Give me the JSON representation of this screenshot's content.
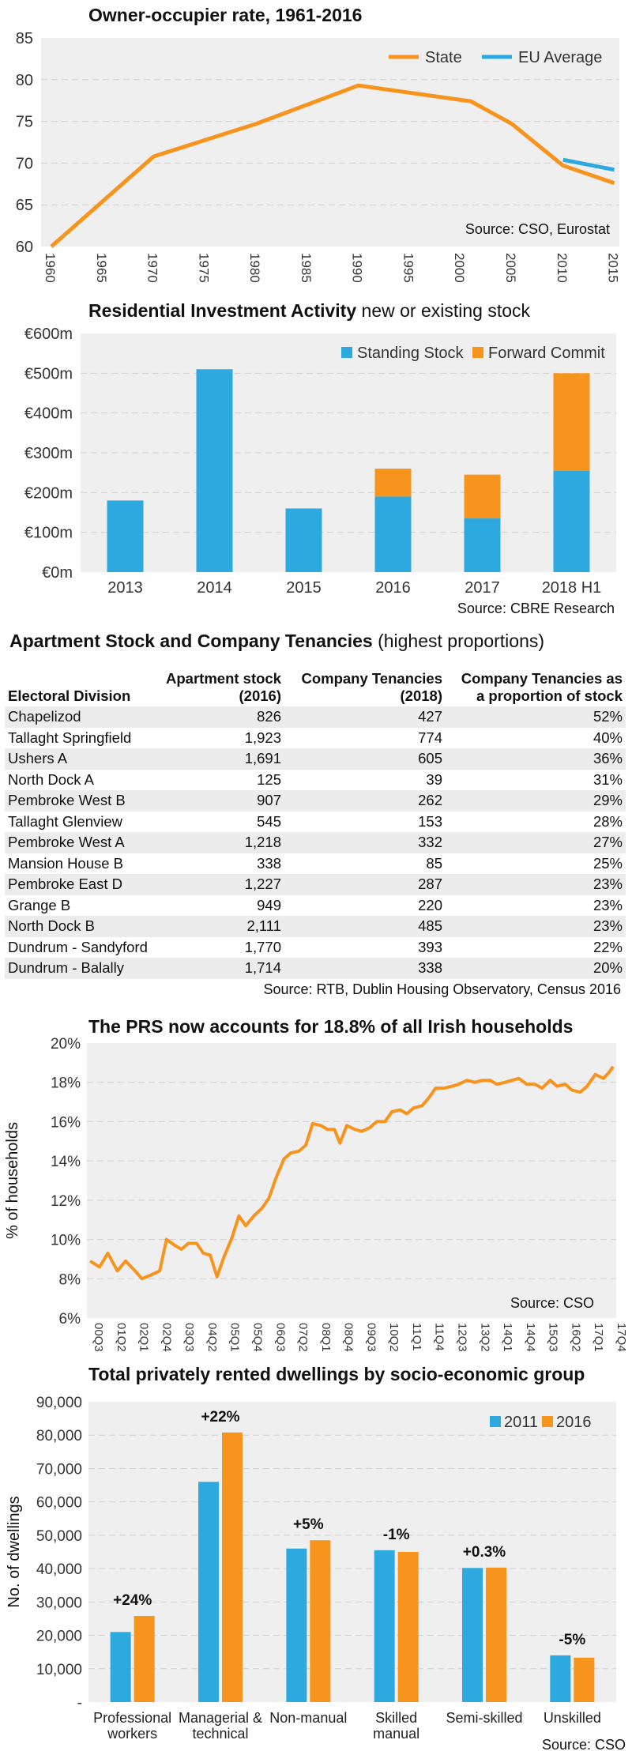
{
  "colors": {
    "orange": "#f7941d",
    "blue": "#2ea9df",
    "panel_bg": "#efefef",
    "grid": "#d0d0d0"
  },
  "chart_data": [
    {
      "type": "line",
      "title": "Owner-occupier rate, 1961-2016",
      "xlabel": "",
      "ylabel": "",
      "ylim": [
        60,
        85
      ],
      "yticks": [
        "60",
        "65",
        "70",
        "75",
        "80",
        "85"
      ],
      "xticks": [
        "1960",
        "1965",
        "1970",
        "1975",
        "1980",
        "1985",
        "1990",
        "1995",
        "2000",
        "2005",
        "2010",
        "2015"
      ],
      "series": [
        {
          "name": "State",
          "color": "#f7941d",
          "points": [
            [
              1961,
              60.0
            ],
            [
              1971,
              70.8
            ],
            [
              1981,
              74.7
            ],
            [
              1991,
              79.3
            ],
            [
              2002,
              77.4
            ],
            [
              2006,
              74.7
            ],
            [
              2011,
              69.7
            ],
            [
              2016,
              67.6
            ]
          ]
        },
        {
          "name": "EU Average",
          "color": "#2ea9df",
          "points": [
            [
              2011,
              70.4
            ],
            [
              2016,
              69.2
            ]
          ]
        }
      ],
      "legend": "top-right",
      "source": "Source: CSO, Eurostat"
    },
    {
      "type": "bar",
      "title": "Residential Investment Activity",
      "subtitle": "new or existing stock",
      "categories": [
        "2013",
        "2014",
        "2015",
        "2016",
        "2017",
        "2018 H1"
      ],
      "series": [
        {
          "name": "Standing Stock",
          "color": "#2ea9df",
          "values": [
            180,
            510,
            160,
            190,
            135,
            255
          ]
        },
        {
          "name": "Forward Commit",
          "color": "#f7941d",
          "values": [
            0,
            0,
            0,
            70,
            110,
            245
          ]
        }
      ],
      "stacked": true,
      "ylim": [
        0,
        600
      ],
      "yticks": [
        "€0m",
        "€100m",
        "€200m",
        "€300m",
        "€400m",
        "€500m",
        "€600m"
      ],
      "legend": "top-right",
      "source": "Source: CBRE Research"
    },
    {
      "type": "table",
      "title": "Apartment Stock and Company Tenancies",
      "subtitle": "(highest proportions)",
      "columns": [
        "Electoral Division",
        "Apartment stock\n(2016)",
        "Company Tenancies\n(2018)",
        "Company Tenancies as\na proportion of stock"
      ],
      "rows": [
        [
          "Chapelizod",
          "826",
          "427",
          "52%"
        ],
        [
          "Tallaght Springfield",
          "1,923",
          "774",
          "40%"
        ],
        [
          "Ushers A",
          "1,691",
          "605",
          "36%"
        ],
        [
          "North Dock A",
          "125",
          "39",
          "31%"
        ],
        [
          "Pembroke West B",
          "907",
          "262",
          "29%"
        ],
        [
          "Tallaght Glenview",
          "545",
          "153",
          "28%"
        ],
        [
          "Pembroke West A",
          "1,218",
          "332",
          "27%"
        ],
        [
          "Mansion House B",
          "338",
          "85",
          "25%"
        ],
        [
          "Pembroke East D",
          "1,227",
          "287",
          "23%"
        ],
        [
          "Grange B",
          "949",
          "220",
          "23%"
        ],
        [
          "North Dock B",
          "2,111",
          "485",
          "23%"
        ],
        [
          "Dundrum - Sandyford",
          "1,770",
          "393",
          "22%"
        ],
        [
          "Dundrum - Balally",
          "1,714",
          "338",
          "20%"
        ]
      ],
      "source": "Source: RTB, Dublin Housing Observatory, Census 2016"
    },
    {
      "type": "line",
      "title": "The PRS now accounts for 18.8% of all Irish households",
      "ylabel": "% of households",
      "ylim": [
        6,
        20
      ],
      "yticks": [
        "6%",
        "8%",
        "10%",
        "12%",
        "14%",
        "16%",
        "18%",
        "20%"
      ],
      "xticks": [
        "00Q3",
        "01Q2",
        "02Q1",
        "02Q4",
        "03Q3",
        "04Q2",
        "05Q1",
        "05Q4",
        "06Q3",
        "07Q2",
        "08Q1",
        "08Q4",
        "09Q3",
        "10Q2",
        "11Q1",
        "11Q4",
        "12Q3",
        "13Q2",
        "14Q1",
        "14Q4",
        "15Q3",
        "16Q2",
        "17Q1",
        "17Q4"
      ],
      "series": [
        {
          "name": "",
          "color": "#f7941d",
          "points": [
            [
              0,
              8.9
            ],
            [
              0.7,
              8.6
            ],
            [
              1.3,
              9.3
            ],
            [
              2,
              8.4
            ],
            [
              2.6,
              8.9
            ],
            [
              3.3,
              8.4
            ],
            [
              3.8,
              8.0
            ],
            [
              4.5,
              8.2
            ],
            [
              5.1,
              8.4
            ],
            [
              5.6,
              10.0
            ],
            [
              6.2,
              9.7
            ],
            [
              6.7,
              9.5
            ],
            [
              7.2,
              9.8
            ],
            [
              7.8,
              9.8
            ],
            [
              8.3,
              9.3
            ],
            [
              8.8,
              9.2
            ],
            [
              9.3,
              8.1
            ],
            [
              9.8,
              9.1
            ],
            [
              10.4,
              10.1
            ],
            [
              10.9,
              11.2
            ],
            [
              11.4,
              10.7
            ],
            [
              12,
              11.2
            ],
            [
              12.6,
              11.6
            ],
            [
              13.1,
              12.1
            ],
            [
              13.6,
              13.1
            ],
            [
              14.2,
              14.1
            ],
            [
              14.7,
              14.4
            ],
            [
              15.3,
              14.5
            ],
            [
              15.8,
              14.8
            ],
            [
              16.3,
              15.9
            ],
            [
              16.9,
              15.8
            ],
            [
              17.4,
              15.6
            ],
            [
              17.9,
              15.6
            ],
            [
              18.3,
              14.9
            ],
            [
              18.8,
              15.8
            ],
            [
              19.4,
              15.6
            ],
            [
              19.9,
              15.5
            ],
            [
              20.5,
              15.7
            ],
            [
              21,
              16.0
            ],
            [
              21.6,
              16.0
            ],
            [
              22.1,
              16.5
            ],
            [
              22.7,
              16.6
            ],
            [
              23.2,
              16.4
            ],
            [
              23.7,
              16.7
            ],
            [
              24.3,
              16.8
            ],
            [
              24.8,
              17.2
            ],
            [
              25.3,
              17.7
            ],
            [
              25.9,
              17.7
            ],
            [
              26.5,
              17.8
            ],
            [
              27,
              17.9
            ],
            [
              27.6,
              18.1
            ],
            [
              28.2,
              18.0
            ],
            [
              28.7,
              18.1
            ],
            [
              29.3,
              18.1
            ],
            [
              29.8,
              17.9
            ],
            [
              30.4,
              18.0
            ],
            [
              30.9,
              18.1
            ],
            [
              31.4,
              18.2
            ],
            [
              32,
              17.9
            ],
            [
              32.6,
              17.9
            ],
            [
              33.1,
              17.7
            ],
            [
              33.7,
              18.1
            ],
            [
              34.2,
              17.8
            ],
            [
              34.8,
              17.9
            ],
            [
              35.3,
              17.6
            ],
            [
              35.9,
              17.5
            ],
            [
              36.4,
              17.8
            ],
            [
              37,
              18.4
            ],
            [
              37.6,
              18.2
            ],
            [
              38,
              18.5
            ],
            [
              38.3,
              18.8
            ]
          ]
        }
      ],
      "x_index_span": 38.3,
      "source": "Source: CSO"
    },
    {
      "type": "bar",
      "title": "Total privately rented dwellings by socio-economic group",
      "ylabel": "No. of dwellings",
      "ylim": [
        0,
        90000
      ],
      "yticks": [
        "-",
        "10,000",
        "20,000",
        "30,000",
        "40,000",
        "50,000",
        "60,000",
        "70,000",
        "80,000",
        "90,000"
      ],
      "categories": [
        "Professional\nworkers",
        "Managerial &\ntechnical",
        "Non-manual",
        "Skilled\nmanual",
        "Semi-skilled",
        "Unskilled"
      ],
      "series": [
        {
          "name": "2011",
          "color": "#2ea9df",
          "values": [
            21000,
            66000,
            46000,
            45500,
            40200,
            14000
          ]
        },
        {
          "name": "2016",
          "color": "#f7941d",
          "values": [
            25800,
            80800,
            48500,
            45000,
            40300,
            13300
          ]
        }
      ],
      "annotations": [
        "+24%",
        "+22%",
        "+5%",
        "-1%",
        "+0.3%",
        "-5%"
      ],
      "legend": "top-right",
      "source": "Source: CSO"
    }
  ]
}
